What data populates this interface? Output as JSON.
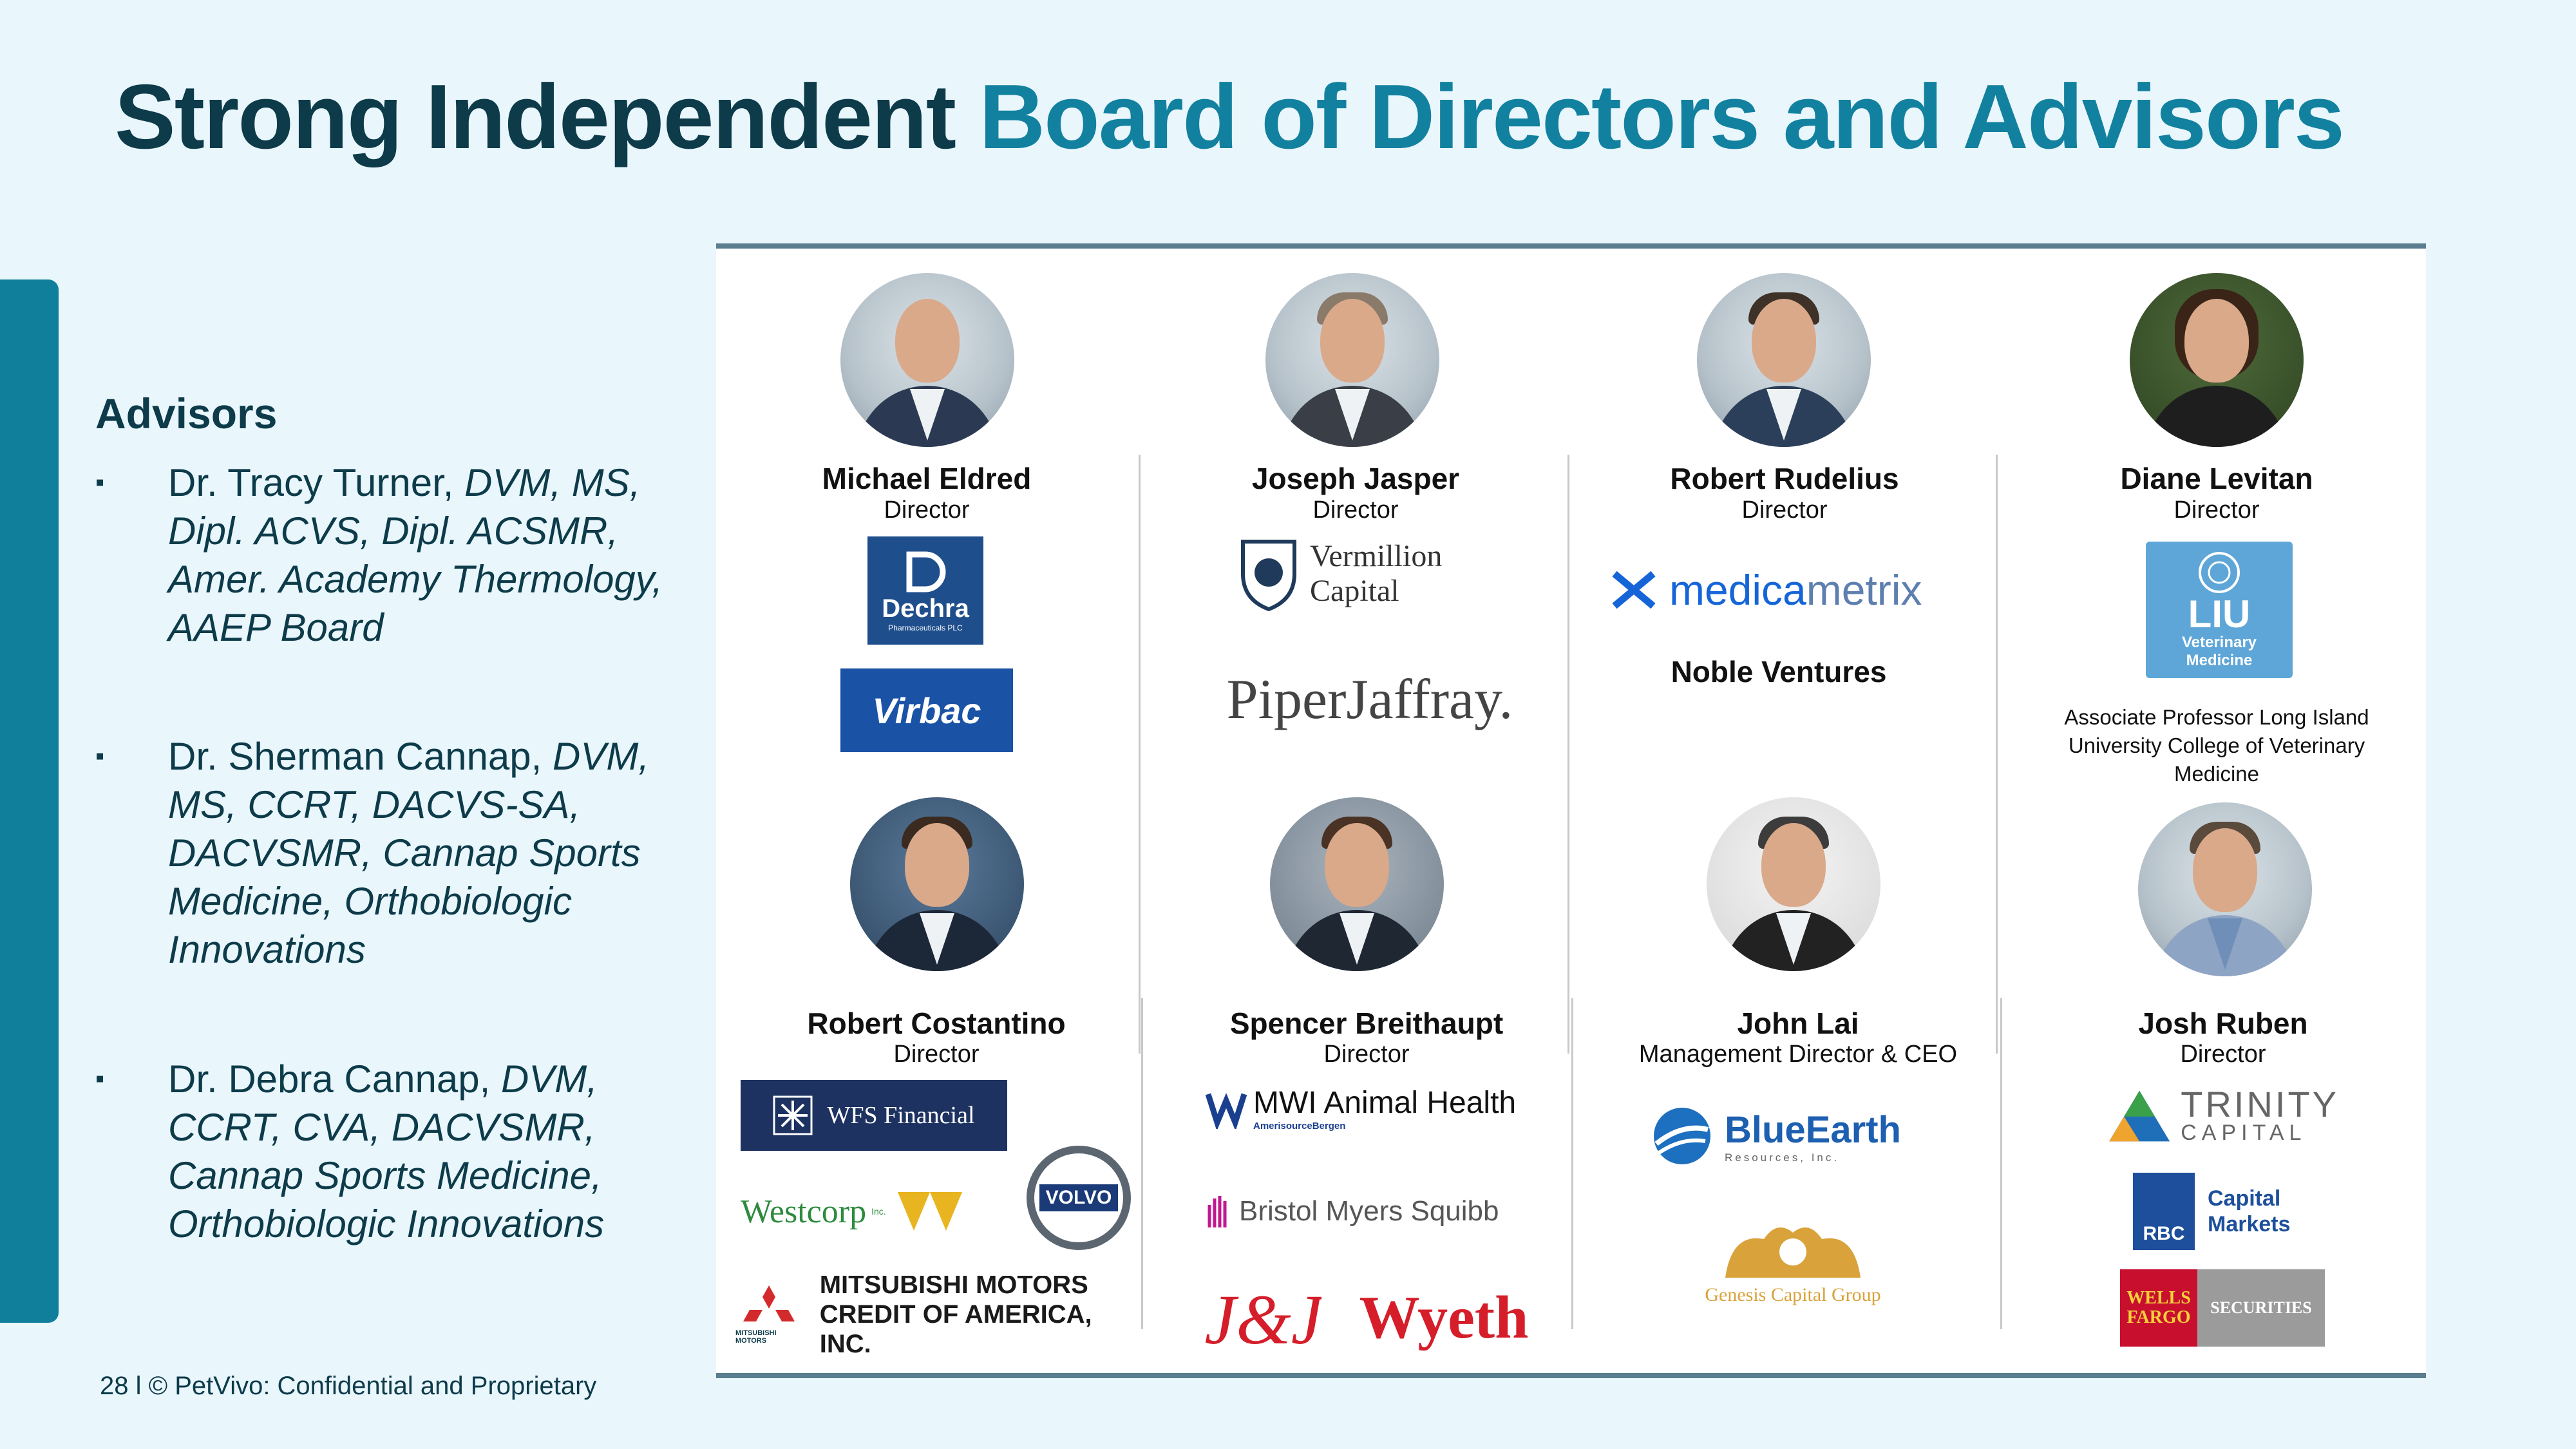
{
  "title": {
    "part1": "Strong Independent",
    "part2": "Board of Directors and Advisors"
  },
  "advisors": {
    "heading": "Advisors",
    "bullet": "▪",
    "items": [
      {
        "name": "Dr. Tracy Turner,",
        "credentials": " DVM, MS, Dipl. ACVS, Dipl. ACSMR, Amer. Academy Thermology, AAEP Board"
      },
      {
        "name": "Dr. Sherman Cannap,",
        "credentials": " DVM, MS, CCRT, DACVS-SA, DACVSMR, Cannap Sports Medicine, Orthobiologic Innovations"
      },
      {
        "name": "Dr. Debra Cannap,",
        "credentials": " DVM, CCRT, CVA, DACVSMR, Cannap Sports Medicine, Orthobiologic Innovations"
      }
    ]
  },
  "footer": "28 l © PetVivo: Confidential and Proprietary",
  "board": [
    {
      "name": "Michael Eldred",
      "role": "Director"
    },
    {
      "name": "Joseph Jasper",
      "role": "Director"
    },
    {
      "name": "Robert Rudelius",
      "role": "Director"
    },
    {
      "name": "Diane Levitan",
      "role": "Director"
    },
    {
      "name": "Robert Costantino",
      "role": "Director"
    },
    {
      "name": "Spencer Breithaupt",
      "role": "Director"
    },
    {
      "name": "John Lai",
      "role": "Management Director & CEO"
    },
    {
      "name": "Josh Ruben",
      "role": "Director"
    }
  ],
  "logos": {
    "dechra": "Dechra",
    "dechra_sub": "Pharmaceuticals PLC",
    "virbac": "Virbac",
    "vermillion_1": "Vermillion",
    "vermillion_2": "Capital",
    "piper": "PiperJaffray.",
    "medica_1": "medica",
    "medica_2": "metrix",
    "noble": "Noble Ventures",
    "liu_1": "LIU",
    "liu_2": "Veterinary",
    "liu_3": "Medicine",
    "diane_note": "Associate Professor Long Island University College of Veterinary Medicine",
    "wfs": "WFS Financial",
    "westcorp": "Westcorp",
    "westcorp_sub": "Inc.",
    "volvo": "VOLVO",
    "mitsubishi_1": "MITSUBISHI MOTORS",
    "mitsubishi_2": "CREDIT OF AMERICA, INC.",
    "mitsubishi_mark": "MITSUBISHI MOTORS",
    "mwi": "MWI Animal Health",
    "mwi_sub": "AmerisourceBergen",
    "bms": "Bristol Myers Squibb",
    "jj": "J&J",
    "wyeth": "Wyeth",
    "blueearth": "BlueEarth",
    "blueearth_sub": "Resources, Inc.",
    "genesis": "Genesis Capital Group",
    "trinity_1": "TRINITY",
    "trinity_2": "CAPITAL",
    "rbc_1": "Capital",
    "rbc_2": "Markets",
    "rbc_mark": "RBC",
    "wells_1": "WELLS",
    "wells_2": "FARGO",
    "wells_3": "SECURITIES"
  },
  "colors": {
    "accent": "#12819f",
    "dark": "#0d3b4a",
    "sidebar": "#0f7f9c",
    "background": "#e9f6fc"
  }
}
